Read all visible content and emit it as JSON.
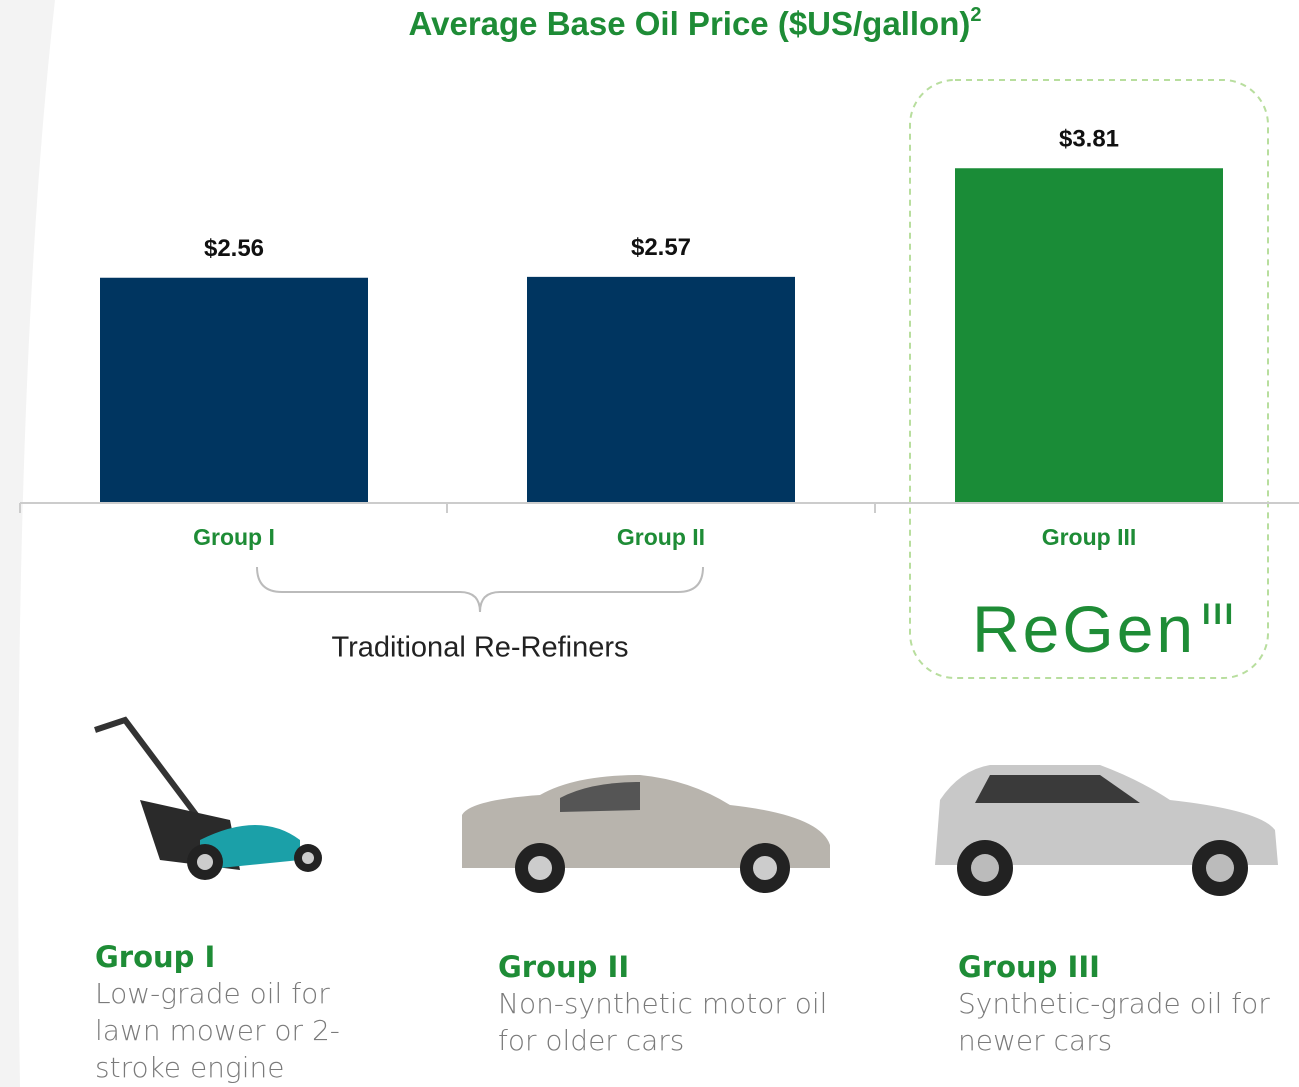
{
  "chart_data": {
    "type": "bar",
    "title": "Average Base Oil Price ($US/gallon)",
    "title_superscript": "2",
    "categories": [
      "Group I",
      "Group II",
      "Group III"
    ],
    "values": [
      2.56,
      2.57,
      3.81
    ],
    "value_labels": [
      "$2.56",
      "$2.57",
      "$3.81"
    ],
    "colors": [
      "#003560",
      "#003560",
      "#1a8c37"
    ]
  },
  "bracket_label": "Traditional Re-Refiners",
  "logo": {
    "text": "ReGen",
    "superscript": "III"
  },
  "captions": [
    {
      "title": "Group I",
      "text": "Low-grade oil for lawn mower or 2-stroke engine"
    },
    {
      "title": "Group II",
      "text": "Non-synthetic motor oil for older cars"
    },
    {
      "title": "Group III",
      "text": "Synthetic-grade oil for newer cars"
    }
  ]
}
